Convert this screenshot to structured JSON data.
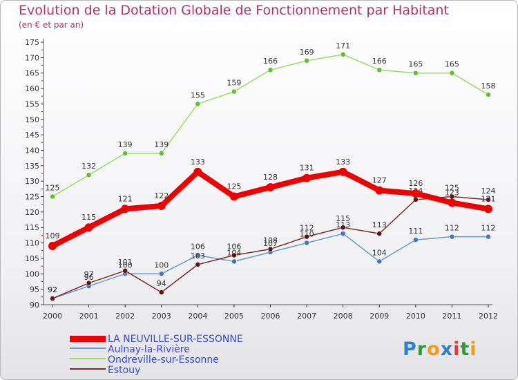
{
  "header": {
    "title": "Evolution de la Dotation Globale de Fonctionnement par Habitant",
    "subtitle": "(en € et par an)"
  },
  "logo": {
    "text": "Proxiti",
    "letter_colors": [
      "#2f7fd0",
      "#2f9a3a",
      "#f09a20",
      "#2f7fd0",
      "#e03a3a",
      "#2f9a3a",
      "#f09a20"
    ]
  },
  "colors": {
    "axis": "#555555",
    "grid_tick": "#333333",
    "y_tick_marks": "#cc0000"
  },
  "chart_data": {
    "type": "line",
    "title": "Evolution de la Dotation Globale de Fonctionnement par Habitant",
    "subtitle": "(en € et par an)",
    "xlabel": "",
    "ylabel": "",
    "x": [
      "2000",
      "2001",
      "2002",
      "2003",
      "2004",
      "2005",
      "2006",
      "2007",
      "2008",
      "2009",
      "2010",
      "2011",
      "2012"
    ],
    "ylim": [
      90,
      175
    ],
    "yticks": [
      90,
      95,
      100,
      105,
      110,
      115,
      120,
      125,
      130,
      135,
      140,
      145,
      150,
      155,
      160,
      165,
      170,
      175
    ],
    "grid": false,
    "legend_position": "bottom-left",
    "series": [
      {
        "name": "Ondreville-sur-Essonne",
        "color": "#99dd66",
        "marker": "#66bb33",
        "values": [
          125,
          132,
          139,
          139,
          155,
          159,
          166,
          169,
          171,
          166,
          165,
          165,
          158
        ]
      },
      {
        "name": "Aulnay-la-Rivière",
        "color": "#6699cc",
        "marker": "#4477bb",
        "values": [
          92,
          96,
          100,
          100,
          106,
          104,
          107,
          110,
          113,
          104,
          111,
          112,
          112
        ]
      },
      {
        "name": "Estouy",
        "color": "#7a2a2a",
        "marker": "#5a1414",
        "values": [
          92,
          97,
          101,
          94,
          103,
          106,
          108,
          112,
          115,
          113,
          124,
          125,
          124
        ]
      },
      {
        "name": "LA NEUVILLE-SUR-ESSONNE",
        "color": "#ee0000",
        "marker": "#ee0000",
        "values": [
          109,
          115,
          121,
          122,
          133,
          125,
          128,
          131,
          133,
          127,
          126,
          123,
          121
        ]
      }
    ]
  },
  "legend": {
    "items": [
      {
        "label": "LA NEUVILLE-SUR-ESSONNE",
        "color": "#ee0000"
      },
      {
        "label": "Aulnay-la-Rivière",
        "color": "#6699cc"
      },
      {
        "label": "Ondreville-sur-Essonne",
        "color": "#99dd66"
      },
      {
        "label": "Estouy",
        "color": "#7a2a2a"
      }
    ]
  }
}
